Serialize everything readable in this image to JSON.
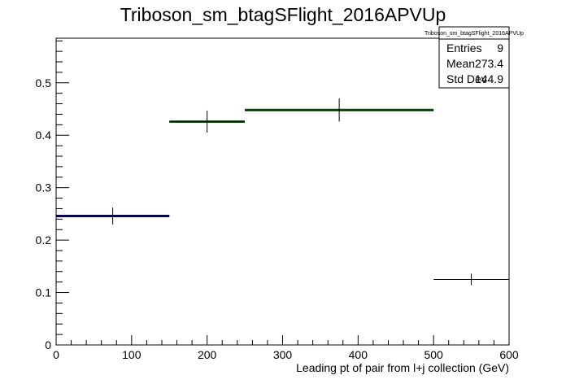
{
  "chart_data": {
    "type": "histogram",
    "title": "Triboson_sm_btagSFlight_2016APVUp",
    "xlabel": "Leading pt of pair from l+j collection (GeV)",
    "ylabel": "",
    "xlim": [
      0,
      600
    ],
    "ylim": [
      0,
      0.585
    ],
    "x_ticks": [
      "0",
      "100",
      "200",
      "300",
      "400",
      "500",
      "600"
    ],
    "y_ticks": [
      "0",
      "0.1",
      "0.2",
      "0.3",
      "0.4",
      "0.5"
    ],
    "grid": false,
    "bins": [
      {
        "xlow": 0,
        "xhigh": 150,
        "value": 0.246,
        "error": 0.016,
        "line_color": "#00008b"
      },
      {
        "xlow": 150,
        "xhigh": 250,
        "value": 0.426,
        "error": 0.021,
        "line_color": "#006400"
      },
      {
        "xlow": 250,
        "xhigh": 500,
        "value": 0.448,
        "error": 0.022,
        "line_color": "#006400"
      },
      {
        "xlow": 500,
        "xhigh": 600,
        "value": 0.125,
        "error": 0.011,
        "line_color": "#000000"
      }
    ],
    "stats_box": {
      "title": "Triboson_sm_btagSFlight_2016APVUp",
      "rows": [
        {
          "label": "Entries",
          "value": "9"
        },
        {
          "label": "Mean",
          "value": "273.4"
        },
        {
          "label": "Std Dev",
          "value": "144.9"
        }
      ]
    }
  }
}
